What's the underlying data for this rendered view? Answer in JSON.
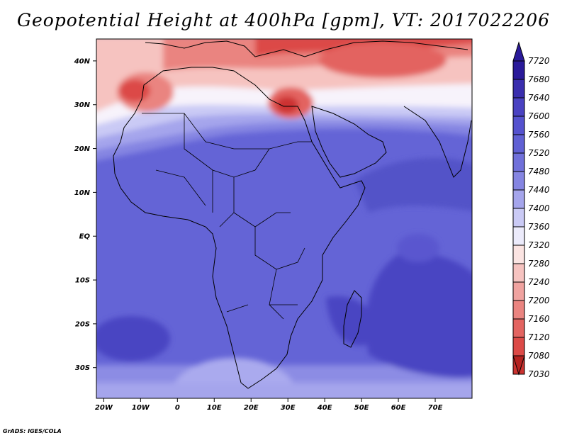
{
  "title": "Geopotential Height at 400hPa [gpm], VT: 2017022206",
  "credit": "GrADS: IGES/COLA",
  "map": {
    "lat_range": [
      -37,
      45
    ],
    "lon_range": [
      -22,
      80
    ],
    "lat_ticks": [
      {
        "lat": 40,
        "label": "40N"
      },
      {
        "lat": 30,
        "label": "30N"
      },
      {
        "lat": 20,
        "label": "20N"
      },
      {
        "lat": 10,
        "label": "10N"
      },
      {
        "lat": 0,
        "label": "EQ"
      },
      {
        "lat": -10,
        "label": "10S"
      },
      {
        "lat": -20,
        "label": "20S"
      },
      {
        "lat": -30,
        "label": "30S"
      }
    ],
    "lon_ticks": [
      {
        "lon": -20,
        "label": "20W"
      },
      {
        "lon": -10,
        "label": "10W"
      },
      {
        "lon": 0,
        "label": "0"
      },
      {
        "lon": 10,
        "label": "10E"
      },
      {
        "lon": 20,
        "label": "20E"
      },
      {
        "lon": 30,
        "label": "30E"
      },
      {
        "lon": 40,
        "label": "40E"
      },
      {
        "lon": 50,
        "label": "50E"
      },
      {
        "lon": 60,
        "label": "60E"
      },
      {
        "lon": 70,
        "label": "70E"
      }
    ]
  },
  "colorbar": {
    "labels": [
      "7720",
      "7680",
      "7640",
      "7600",
      "7560",
      "7520",
      "7480",
      "7440",
      "7400",
      "7360",
      "7320",
      "7280",
      "7240",
      "7200",
      "7160",
      "7120",
      "7080",
      "7030"
    ],
    "colors": [
      "#2a1a9a",
      "#3a2eae",
      "#4a42c2",
      "#5552cf",
      "#6060d4",
      "#7070da",
      "#8585e2",
      "#a5a5ec",
      "#cacaf5",
      "#ecebfb",
      "#fbe4e2",
      "#f6c3c0",
      "#f0a3a0",
      "#ea8480",
      "#e36461",
      "#dc4a47",
      "#cc3330",
      "#b52220"
    ]
  }
}
